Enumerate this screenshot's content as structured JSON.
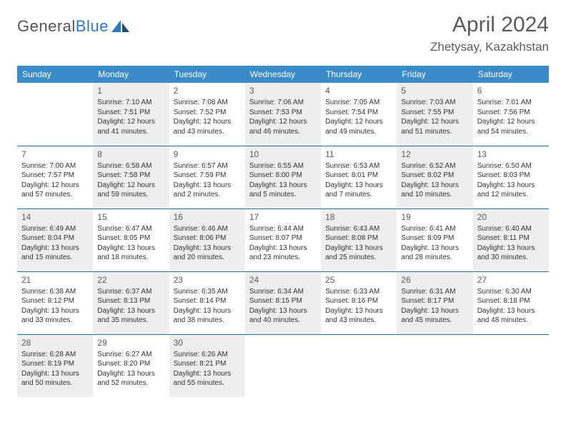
{
  "logo": {
    "text1": "General",
    "text2": "Blue"
  },
  "title": "April 2024",
  "location": "Zhetysay, Kazakhstan",
  "header": {
    "bg": "#3b8bc8",
    "color": "#ffffff",
    "days": [
      "Sunday",
      "Monday",
      "Tuesday",
      "Wednesday",
      "Thursday",
      "Friday",
      "Saturday"
    ]
  },
  "style": {
    "shaded_bg": "#eeeeee",
    "border_color": "#2f6fa3",
    "daynum_color": "#5a5a5a",
    "text_color": "#333333",
    "cell_font_size": 10,
    "header_font_size": 12
  },
  "weeks": [
    [
      {
        "n": "",
        "shaded": false,
        "lines": []
      },
      {
        "n": "1",
        "shaded": true,
        "lines": [
          "Sunrise: 7:10 AM",
          "Sunset: 7:51 PM",
          "Daylight: 12 hours and 41 minutes."
        ]
      },
      {
        "n": "2",
        "shaded": false,
        "lines": [
          "Sunrise: 7:08 AM",
          "Sunset: 7:52 PM",
          "Daylight: 12 hours and 43 minutes."
        ]
      },
      {
        "n": "3",
        "shaded": true,
        "lines": [
          "Sunrise: 7:06 AM",
          "Sunset: 7:53 PM",
          "Daylight: 12 hours and 46 minutes."
        ]
      },
      {
        "n": "4",
        "shaded": false,
        "lines": [
          "Sunrise: 7:05 AM",
          "Sunset: 7:54 PM",
          "Daylight: 12 hours and 49 minutes."
        ]
      },
      {
        "n": "5",
        "shaded": true,
        "lines": [
          "Sunrise: 7:03 AM",
          "Sunset: 7:55 PM",
          "Daylight: 12 hours and 51 minutes."
        ]
      },
      {
        "n": "6",
        "shaded": false,
        "lines": [
          "Sunrise: 7:01 AM",
          "Sunset: 7:56 PM",
          "Daylight: 12 hours and 54 minutes."
        ]
      }
    ],
    [
      {
        "n": "7",
        "shaded": false,
        "lines": [
          "Sunrise: 7:00 AM",
          "Sunset: 7:57 PM",
          "Daylight: 12 hours and 57 minutes."
        ]
      },
      {
        "n": "8",
        "shaded": true,
        "lines": [
          "Sunrise: 6:58 AM",
          "Sunset: 7:58 PM",
          "Daylight: 12 hours and 59 minutes."
        ]
      },
      {
        "n": "9",
        "shaded": false,
        "lines": [
          "Sunrise: 6:57 AM",
          "Sunset: 7:59 PM",
          "Daylight: 13 hours and 2 minutes."
        ]
      },
      {
        "n": "10",
        "shaded": true,
        "lines": [
          "Sunrise: 6:55 AM",
          "Sunset: 8:00 PM",
          "Daylight: 13 hours and 5 minutes."
        ]
      },
      {
        "n": "11",
        "shaded": false,
        "lines": [
          "Sunrise: 6:53 AM",
          "Sunset: 8:01 PM",
          "Daylight: 13 hours and 7 minutes."
        ]
      },
      {
        "n": "12",
        "shaded": true,
        "lines": [
          "Sunrise: 6:52 AM",
          "Sunset: 8:02 PM",
          "Daylight: 13 hours and 10 minutes."
        ]
      },
      {
        "n": "13",
        "shaded": false,
        "lines": [
          "Sunrise: 6:50 AM",
          "Sunset: 8:03 PM",
          "Daylight: 13 hours and 12 minutes."
        ]
      }
    ],
    [
      {
        "n": "14",
        "shaded": true,
        "lines": [
          "Sunrise: 6:49 AM",
          "Sunset: 8:04 PM",
          "Daylight: 13 hours and 15 minutes."
        ]
      },
      {
        "n": "15",
        "shaded": false,
        "lines": [
          "Sunrise: 6:47 AM",
          "Sunset: 8:05 PM",
          "Daylight: 13 hours and 18 minutes."
        ]
      },
      {
        "n": "16",
        "shaded": true,
        "lines": [
          "Sunrise: 6:46 AM",
          "Sunset: 8:06 PM",
          "Daylight: 13 hours and 20 minutes."
        ]
      },
      {
        "n": "17",
        "shaded": false,
        "lines": [
          "Sunrise: 6:44 AM",
          "Sunset: 8:07 PM",
          "Daylight: 13 hours and 23 minutes."
        ]
      },
      {
        "n": "18",
        "shaded": true,
        "lines": [
          "Sunrise: 6:43 AM",
          "Sunset: 8:08 PM",
          "Daylight: 13 hours and 25 minutes."
        ]
      },
      {
        "n": "19",
        "shaded": false,
        "lines": [
          "Sunrise: 6:41 AM",
          "Sunset: 8:09 PM",
          "Daylight: 13 hours and 28 minutes."
        ]
      },
      {
        "n": "20",
        "shaded": true,
        "lines": [
          "Sunrise: 6:40 AM",
          "Sunset: 8:11 PM",
          "Daylight: 13 hours and 30 minutes."
        ]
      }
    ],
    [
      {
        "n": "21",
        "shaded": false,
        "lines": [
          "Sunrise: 6:38 AM",
          "Sunset: 8:12 PM",
          "Daylight: 13 hours and 33 minutes."
        ]
      },
      {
        "n": "22",
        "shaded": true,
        "lines": [
          "Sunrise: 6:37 AM",
          "Sunset: 8:13 PM",
          "Daylight: 13 hours and 35 minutes."
        ]
      },
      {
        "n": "23",
        "shaded": false,
        "lines": [
          "Sunrise: 6:35 AM",
          "Sunset: 8:14 PM",
          "Daylight: 13 hours and 38 minutes."
        ]
      },
      {
        "n": "24",
        "shaded": true,
        "lines": [
          "Sunrise: 6:34 AM",
          "Sunset: 8:15 PM",
          "Daylight: 13 hours and 40 minutes."
        ]
      },
      {
        "n": "25",
        "shaded": false,
        "lines": [
          "Sunrise: 6:33 AM",
          "Sunset: 8:16 PM",
          "Daylight: 13 hours and 43 minutes."
        ]
      },
      {
        "n": "26",
        "shaded": true,
        "lines": [
          "Sunrise: 6:31 AM",
          "Sunset: 8:17 PM",
          "Daylight: 13 hours and 45 minutes."
        ]
      },
      {
        "n": "27",
        "shaded": false,
        "lines": [
          "Sunrise: 6:30 AM",
          "Sunset: 8:18 PM",
          "Daylight: 13 hours and 48 minutes."
        ]
      }
    ],
    [
      {
        "n": "28",
        "shaded": true,
        "lines": [
          "Sunrise: 6:28 AM",
          "Sunset: 8:19 PM",
          "Daylight: 13 hours and 50 minutes."
        ]
      },
      {
        "n": "29",
        "shaded": false,
        "lines": [
          "Sunrise: 6:27 AM",
          "Sunset: 8:20 PM",
          "Daylight: 13 hours and 52 minutes."
        ]
      },
      {
        "n": "30",
        "shaded": true,
        "lines": [
          "Sunrise: 6:26 AM",
          "Sunset: 8:21 PM",
          "Daylight: 13 hours and 55 minutes."
        ]
      },
      {
        "n": "",
        "shaded": false,
        "lines": [],
        "empty": true
      },
      {
        "n": "",
        "shaded": false,
        "lines": [],
        "empty": true
      },
      {
        "n": "",
        "shaded": false,
        "lines": [],
        "empty": true
      },
      {
        "n": "",
        "shaded": false,
        "lines": [],
        "empty": true
      }
    ]
  ]
}
